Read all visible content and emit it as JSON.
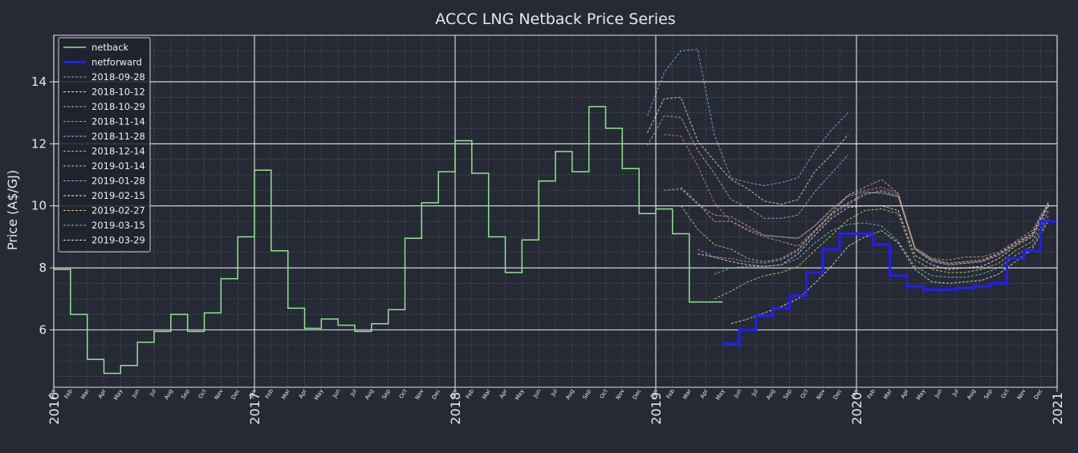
{
  "chart_data": {
    "type": "line",
    "title": "ACCC LNG Netback Price Series",
    "xlabel": "",
    "ylabel": "Price (A$/GJ)",
    "xlim": [
      "2016-01-01",
      "2021-01-01"
    ],
    "ylim": [
      4.15,
      15.5
    ],
    "yticks": [
      6,
      8,
      10,
      12,
      14
    ],
    "year_labels": [
      "2016",
      "2017",
      "2018",
      "2019",
      "2020",
      "2021"
    ],
    "month_labels": [
      "Jan",
      "Feb",
      "Mar",
      "Apr",
      "May",
      "Jun",
      "Jul",
      "Aug",
      "Sep",
      "Oct",
      "Nov",
      "Dec"
    ],
    "grid": true,
    "legend_position": "upper-left",
    "colors": {
      "background": "#262a35",
      "grid_major": "#e6e6e6",
      "grid_minor": "#7a7f8c",
      "axis": "#dddddd"
    },
    "netback": {
      "name": "netback",
      "color": "#8ee68a",
      "x": [
        "2016-01",
        "2016-02",
        "2016-03",
        "2016-04",
        "2016-05",
        "2016-06",
        "2016-07",
        "2016-08",
        "2016-09",
        "2016-10",
        "2016-11",
        "2016-12",
        "2017-01",
        "2017-02",
        "2017-03",
        "2017-04",
        "2017-05",
        "2017-06",
        "2017-07",
        "2017-08",
        "2017-09",
        "2017-10",
        "2017-11",
        "2017-12",
        "2018-01",
        "2018-02",
        "2018-03",
        "2018-04",
        "2018-05",
        "2018-06",
        "2018-07",
        "2018-08",
        "2018-09",
        "2018-10",
        "2018-11",
        "2018-12",
        "2019-01",
        "2019-02",
        "2019-03",
        "2019-04"
      ],
      "values": [
        7.95,
        6.5,
        5.05,
        4.6,
        4.85,
        5.6,
        5.95,
        6.5,
        5.95,
        6.55,
        7.65,
        9.0,
        11.15,
        8.55,
        6.7,
        6.05,
        6.35,
        6.15,
        5.95,
        6.2,
        6.65,
        8.95,
        10.1,
        11.1,
        12.1,
        11.05,
        9.0,
        7.85,
        8.9,
        10.8,
        11.75,
        11.1,
        13.2,
        12.5,
        11.2,
        9.75,
        9.9,
        9.1,
        6.9,
        6.9
      ]
    },
    "netforward": {
      "name": "netforward",
      "color": "#1f1fff",
      "x": [
        "2019-05",
        "2019-06",
        "2019-07",
        "2019-08",
        "2019-09",
        "2019-10",
        "2019-11",
        "2019-12",
        "2020-01",
        "2020-02",
        "2020-03",
        "2020-04",
        "2020-05",
        "2020-06",
        "2020-07",
        "2020-08",
        "2020-09",
        "2020-10",
        "2020-11",
        "2020-12"
      ],
      "values": [
        5.55,
        6.0,
        6.45,
        6.7,
        7.1,
        7.85,
        8.6,
        9.1,
        9.1,
        8.75,
        7.75,
        7.4,
        7.3,
        7.3,
        7.35,
        7.4,
        7.5,
        8.3,
        8.55,
        9.5
      ]
    },
    "series": [
      {
        "name": "2018-09-28",
        "color": "#7fb8d6",
        "x": [
          "2018-12",
          "2019-01",
          "2019-02",
          "2019-03",
          "2019-04",
          "2019-05",
          "2019-06",
          "2019-07",
          "2019-08",
          "2019-09",
          "2019-10",
          "2019-11",
          "2019-12"
        ],
        "values": [
          12.9,
          14.3,
          15.0,
          15.05,
          12.3,
          10.9,
          10.75,
          10.65,
          10.75,
          10.9,
          11.75,
          12.45,
          13.0
        ]
      },
      {
        "name": "2018-10-12",
        "color": "#e9e39a",
        "x": [
          "2018-12",
          "2019-01",
          "2019-02",
          "2019-03",
          "2019-04",
          "2019-05",
          "2019-06",
          "2019-07",
          "2019-08",
          "2019-09",
          "2019-10",
          "2019-11",
          "2019-12"
        ],
        "values": [
          12.35,
          13.45,
          13.5,
          12.1,
          11.45,
          10.85,
          10.55,
          10.15,
          10.05,
          10.2,
          11.1,
          11.65,
          12.3
        ]
      },
      {
        "name": "2018-10-29",
        "color": "#b7b4d8",
        "x": [
          "2018-12",
          "2019-01",
          "2019-02",
          "2019-03",
          "2019-04",
          "2019-05",
          "2019-06",
          "2019-07",
          "2019-08",
          "2019-09",
          "2019-10",
          "2019-11",
          "2019-12"
        ],
        "values": [
          11.95,
          12.9,
          12.85,
          11.8,
          11.05,
          10.2,
          9.95,
          9.6,
          9.6,
          9.7,
          10.45,
          11.05,
          11.65
        ]
      },
      {
        "name": "2018-11-14",
        "color": "#e67d72",
        "x": [
          "2019-01",
          "2019-02",
          "2019-03",
          "2019-04",
          "2019-05",
          "2019-06",
          "2019-07",
          "2019-08",
          "2019-09",
          "2019-10",
          "2019-11",
          "2019-12",
          "2020-01",
          "2020-02",
          "2020-03",
          "2020-04",
          "2020-05",
          "2020-06",
          "2020-07",
          "2020-08",
          "2020-09",
          "2020-10",
          "2020-11",
          "2020-12"
        ],
        "values": [
          12.3,
          12.25,
          11.3,
          10.1,
          9.5,
          9.25,
          9.05,
          9.0,
          8.95,
          9.35,
          9.85,
          10.35,
          10.5,
          10.6,
          10.4,
          8.65,
          8.3,
          8.15,
          8.2,
          8.25,
          8.45,
          8.75,
          9.1,
          10.1
        ]
      },
      {
        "name": "2018-11-28",
        "color": "#8fc4e0",
        "x": [
          "2019-01",
          "2019-02",
          "2019-03",
          "2019-04",
          "2019-05",
          "2019-06",
          "2019-07",
          "2019-08",
          "2019-09",
          "2019-10",
          "2019-11",
          "2019-12",
          "2020-01",
          "2020-02",
          "2020-03",
          "2020-04",
          "2020-05",
          "2020-06",
          "2020-07",
          "2020-08",
          "2020-09",
          "2020-10",
          "2020-11",
          "2020-12"
        ],
        "values": [
          10.5,
          10.55,
          10.05,
          9.7,
          9.65,
          9.35,
          9.05,
          9.0,
          8.95,
          9.35,
          9.9,
          10.3,
          10.45,
          10.4,
          10.3,
          8.6,
          8.25,
          8.1,
          8.15,
          8.2,
          8.4,
          8.75,
          9.05,
          10.05
        ]
      },
      {
        "name": "2018-12-14",
        "color": "#f0a85a",
        "x": [
          "2019-02",
          "2019-03",
          "2019-04",
          "2019-05",
          "2019-06",
          "2019-07",
          "2019-08",
          "2019-09",
          "2019-10",
          "2019-11",
          "2019-12",
          "2020-01",
          "2020-02",
          "2020-03",
          "2020-04",
          "2020-05",
          "2020-06",
          "2020-07",
          "2020-08",
          "2020-09",
          "2020-10",
          "2020-11",
          "2020-12"
        ],
        "values": [
          10.6,
          10.1,
          9.5,
          9.5,
          9.2,
          9.0,
          8.85,
          8.7,
          9.2,
          9.75,
          10.35,
          10.6,
          10.85,
          10.4,
          8.65,
          8.3,
          8.25,
          8.35,
          8.35,
          8.5,
          8.85,
          9.2,
          10.15
        ]
      },
      {
        "name": "2019-01-14",
        "color": "#b9d86a",
        "x": [
          "2019-02",
          "2019-03",
          "2019-04",
          "2019-05",
          "2019-06",
          "2019-07",
          "2019-08",
          "2019-09",
          "2019-10",
          "2019-11",
          "2019-12",
          "2020-01",
          "2020-02",
          "2020-03",
          "2020-04",
          "2020-05",
          "2020-06",
          "2020-07",
          "2020-08",
          "2020-09",
          "2020-10",
          "2020-11",
          "2020-12"
        ],
        "values": [
          10.0,
          9.25,
          8.75,
          8.6,
          8.3,
          8.2,
          8.3,
          8.6,
          9.2,
          9.75,
          10.1,
          10.4,
          10.45,
          10.3,
          8.6,
          8.25,
          8.15,
          8.2,
          8.25,
          8.45,
          8.8,
          9.1,
          10.1
        ]
      },
      {
        "name": "2019-01-28",
        "color": "#d58ad8",
        "x": [
          "2019-03",
          "2019-04",
          "2019-05",
          "2019-06",
          "2019-07",
          "2019-08",
          "2019-09",
          "2019-10",
          "2019-11",
          "2019-12",
          "2020-01",
          "2020-02",
          "2020-03",
          "2020-04",
          "2020-05",
          "2020-06",
          "2020-07",
          "2020-08",
          "2020-09",
          "2020-10",
          "2020-11",
          "2020-12"
        ],
        "values": [
          8.6,
          8.35,
          8.3,
          8.2,
          8.15,
          8.25,
          8.55,
          9.15,
          9.7,
          10.05,
          10.35,
          10.5,
          10.35,
          8.6,
          8.2,
          8.1,
          8.15,
          8.2,
          8.45,
          8.8,
          9.1,
          10.1
        ]
      },
      {
        "name": "2019-02-15",
        "color": "#f0f0e0",
        "x": [
          "2019-03",
          "2019-04",
          "2019-05",
          "2019-06",
          "2019-07",
          "2019-08",
          "2019-09",
          "2019-10",
          "2019-11",
          "2019-12",
          "2020-01",
          "2020-02",
          "2020-03",
          "2020-04",
          "2020-05",
          "2020-06",
          "2020-07",
          "2020-08",
          "2020-09",
          "2020-10",
          "2020-11",
          "2020-12"
        ],
        "values": [
          8.45,
          8.35,
          8.2,
          8.1,
          8.05,
          8.1,
          8.45,
          9.05,
          9.6,
          9.95,
          10.0,
          10.0,
          9.85,
          8.4,
          8.1,
          7.95,
          8.0,
          8.05,
          8.3,
          8.7,
          9.0,
          10.0
        ]
      },
      {
        "name": "2019-02-27",
        "color": "#e8cc52",
        "x": [
          "2019-04",
          "2019-05",
          "2019-06",
          "2019-07",
          "2019-08",
          "2019-09",
          "2019-10",
          "2019-11",
          "2019-12",
          "2020-01",
          "2020-02",
          "2020-03",
          "2020-04",
          "2020-05",
          "2020-06",
          "2020-07",
          "2020-08",
          "2020-09",
          "2020-10",
          "2020-11",
          "2020-12"
        ],
        "values": [
          7.0,
          7.25,
          7.55,
          7.75,
          7.85,
          8.05,
          8.55,
          9.05,
          9.55,
          9.85,
          9.9,
          9.75,
          8.25,
          7.95,
          7.85,
          7.85,
          7.95,
          8.15,
          8.55,
          8.85,
          9.85
        ]
      },
      {
        "name": "2019-03-15",
        "color": "#5fd6c8",
        "x": [
          "2019-04",
          "2019-05",
          "2019-06",
          "2019-07",
          "2019-08",
          "2019-09",
          "2019-10",
          "2019-11",
          "2019-12",
          "2020-01",
          "2020-02",
          "2020-03",
          "2020-04",
          "2020-05",
          "2020-06",
          "2020-07",
          "2020-08",
          "2020-09",
          "2020-10",
          "2020-11",
          "2020-12"
        ],
        "values": [
          7.8,
          8.0,
          8.05,
          8.05,
          8.1,
          8.3,
          8.8,
          9.2,
          9.4,
          9.45,
          9.35,
          8.85,
          8.05,
          7.75,
          7.7,
          7.7,
          7.8,
          8.0,
          8.4,
          8.7,
          9.7
        ]
      },
      {
        "name": "2019-03-29",
        "color": "#ecebd6",
        "x": [
          "2019-05",
          "2019-06",
          "2019-07",
          "2019-08",
          "2019-09",
          "2019-10",
          "2019-11",
          "2019-12",
          "2020-01",
          "2020-02",
          "2020-03",
          "2020-04",
          "2020-05",
          "2020-06",
          "2020-07",
          "2020-08",
          "2020-09",
          "2020-10",
          "2020-11",
          "2020-12"
        ],
        "values": [
          6.2,
          6.35,
          6.55,
          6.75,
          7.0,
          7.5,
          8.05,
          8.7,
          9.0,
          9.2,
          8.8,
          7.95,
          7.55,
          7.5,
          7.55,
          7.6,
          7.8,
          8.2,
          8.6,
          9.55
        ]
      }
    ]
  }
}
